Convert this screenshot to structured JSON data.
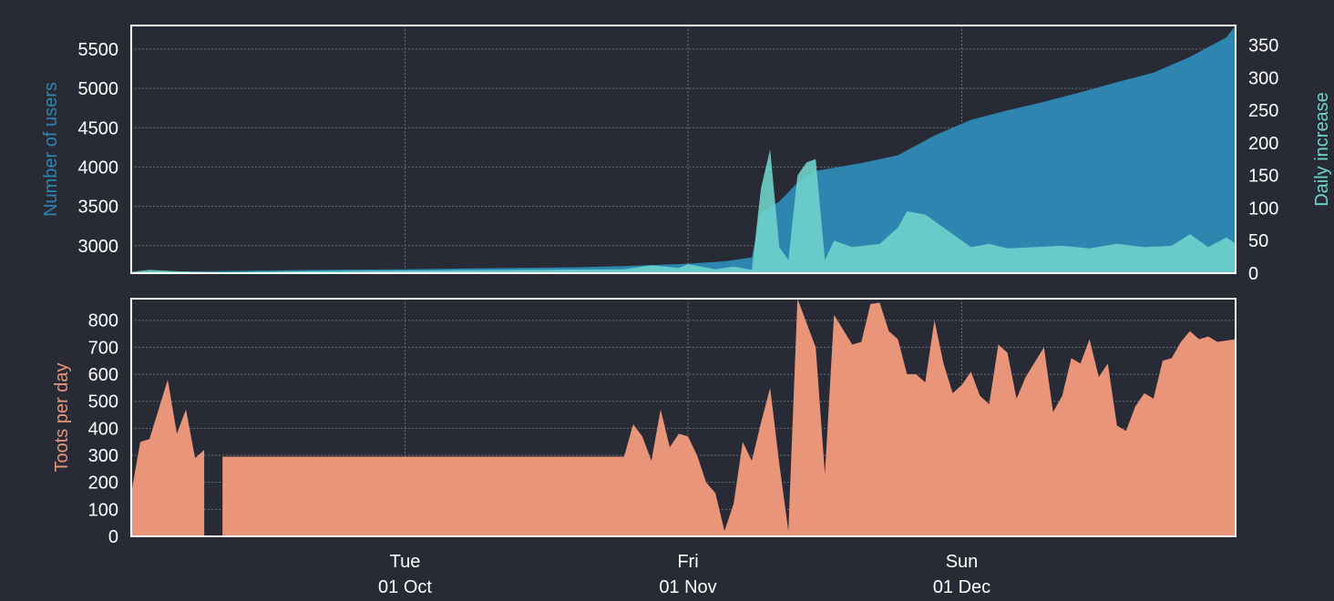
{
  "colors": {
    "background": "#282b35",
    "users": "#2e86b0",
    "daily": "#6fd6cc",
    "toots": "#e8957a",
    "frame": "#ffffff",
    "grid": "#6a6d78",
    "text": "#ffffff"
  },
  "chart_data": [
    {
      "type": "area",
      "ylabel_left": "Number of users",
      "ylabel_right": "Daily increase",
      "x_range": [
        "2019-09-01",
        "2019-12-31"
      ],
      "ylim_left": [
        2650,
        5800
      ],
      "ylim_right": [
        0,
        380
      ],
      "yticks_left": [
        "3000",
        "3500",
        "4000",
        "4500",
        "5000",
        "5500"
      ],
      "yticks_right": [
        "0",
        "50",
        "100",
        "150",
        "200",
        "250",
        "300",
        "350"
      ],
      "grid": true,
      "series": [
        {
          "name": "Number of users",
          "axis": "left",
          "points": [
            [
              "2019-09-01",
              2665
            ],
            [
              "2019-09-10",
              2675
            ],
            [
              "2019-09-20",
              2690
            ],
            [
              "2019-10-01",
              2700
            ],
            [
              "2019-10-10",
              2712
            ],
            [
              "2019-10-20",
              2725
            ],
            [
              "2019-10-25",
              2740
            ],
            [
              "2019-11-01",
              2770
            ],
            [
              "2019-11-05",
              2800
            ],
            [
              "2019-11-08",
              2850
            ],
            [
              "2019-11-09",
              3420
            ],
            [
              "2019-11-11",
              3560
            ],
            [
              "2019-11-13",
              3800
            ],
            [
              "2019-11-15",
              3950
            ],
            [
              "2019-11-20",
              4050
            ],
            [
              "2019-11-24",
              4150
            ],
            [
              "2019-11-28",
              4400
            ],
            [
              "2019-12-02",
              4600
            ],
            [
              "2019-12-06",
              4720
            ],
            [
              "2019-12-10",
              4830
            ],
            [
              "2019-12-14",
              4950
            ],
            [
              "2019-12-18",
              5080
            ],
            [
              "2019-12-22",
              5200
            ],
            [
              "2019-12-26",
              5400
            ],
            [
              "2019-12-30",
              5650
            ],
            [
              "2019-12-31",
              5800
            ]
          ]
        },
        {
          "name": "Daily increase",
          "axis": "right",
          "points": [
            [
              "2019-09-01",
              2
            ],
            [
              "2019-09-03",
              5
            ],
            [
              "2019-09-06",
              3
            ],
            [
              "2019-09-10",
              1
            ],
            [
              "2019-09-15",
              2
            ],
            [
              "2019-09-20",
              3
            ],
            [
              "2019-10-01",
              4
            ],
            [
              "2019-10-15",
              5
            ],
            [
              "2019-10-25",
              6
            ],
            [
              "2019-10-28",
              12
            ],
            [
              "2019-10-31",
              8
            ],
            [
              "2019-11-01",
              14
            ],
            [
              "2019-11-04",
              6
            ],
            [
              "2019-11-06",
              10
            ],
            [
              "2019-11-08",
              5
            ],
            [
              "2019-11-09",
              130
            ],
            [
              "2019-11-10",
              190
            ],
            [
              "2019-11-11",
              40
            ],
            [
              "2019-11-12",
              20
            ],
            [
              "2019-11-13",
              150
            ],
            [
              "2019-11-14",
              170
            ],
            [
              "2019-11-15",
              175
            ],
            [
              "2019-11-16",
              20
            ],
            [
              "2019-11-17",
              50
            ],
            [
              "2019-11-19",
              40
            ],
            [
              "2019-11-22",
              45
            ],
            [
              "2019-11-24",
              70
            ],
            [
              "2019-11-25",
              95
            ],
            [
              "2019-11-27",
              90
            ],
            [
              "2019-11-30",
              60
            ],
            [
              "2019-12-02",
              40
            ],
            [
              "2019-12-04",
              45
            ],
            [
              "2019-12-06",
              38
            ],
            [
              "2019-12-09",
              40
            ],
            [
              "2019-12-12",
              42
            ],
            [
              "2019-12-15",
              38
            ],
            [
              "2019-12-18",
              45
            ],
            [
              "2019-12-21",
              40
            ],
            [
              "2019-12-24",
              42
            ],
            [
              "2019-12-26",
              60
            ],
            [
              "2019-12-28",
              40
            ],
            [
              "2019-12-30",
              55
            ],
            [
              "2019-12-31",
              45
            ]
          ]
        }
      ]
    },
    {
      "type": "area",
      "ylabel": "Toots per day",
      "x_range": [
        "2019-09-01",
        "2019-12-31"
      ],
      "ylim": [
        0,
        880
      ],
      "yticks": [
        "0",
        "100",
        "200",
        "300",
        "400",
        "500",
        "600",
        "700",
        "800"
      ],
      "xticks": [
        {
          "date": "2019-10-01",
          "line1": "Tue",
          "line2": "01 Oct"
        },
        {
          "date": "2019-11-01",
          "line1": "Fri",
          "line2": "01 Nov"
        },
        {
          "date": "2019-12-01",
          "line1": "Sun",
          "line2": "01 Dec"
        }
      ],
      "grid": true,
      "series": [
        {
          "name": "Toots per day",
          "segments": [
            [
              [
                "2019-09-01",
                160
              ],
              [
                "2019-09-02",
                350
              ],
              [
                "2019-09-03",
                360
              ],
              [
                "2019-09-05",
                580
              ],
              [
                "2019-09-06",
                380
              ],
              [
                "2019-09-07",
                470
              ],
              [
                "2019-09-08",
                290
              ],
              [
                "2019-09-09",
                320
              ]
            ],
            [
              [
                "2019-09-11",
                295
              ],
              [
                "2019-10-25",
                295
              ],
              [
                "2019-10-26",
                415
              ],
              [
                "2019-10-27",
                370
              ],
              [
                "2019-10-28",
                280
              ],
              [
                "2019-10-29",
                470
              ],
              [
                "2019-10-30",
                330
              ],
              [
                "2019-10-31",
                380
              ],
              [
                "2019-11-01",
                370
              ],
              [
                "2019-11-02",
                300
              ],
              [
                "2019-11-03",
                200
              ],
              [
                "2019-11-04",
                160
              ],
              [
                "2019-11-05",
                20
              ],
              [
                "2019-11-06",
                120
              ],
              [
                "2019-11-07",
                350
              ],
              [
                "2019-11-08",
                280
              ],
              [
                "2019-11-09",
                420
              ],
              [
                "2019-11-10",
                550
              ],
              [
                "2019-11-11",
                270
              ],
              [
                "2019-11-12",
                20
              ],
              [
                "2019-11-13",
                880
              ],
              [
                "2019-11-15",
                700
              ],
              [
                "2019-11-16",
                230
              ],
              [
                "2019-11-17",
                820
              ],
              [
                "2019-11-19",
                710
              ],
              [
                "2019-11-20",
                720
              ],
              [
                "2019-11-21",
                860
              ],
              [
                "2019-11-22",
                865
              ],
              [
                "2019-11-23",
                760
              ],
              [
                "2019-11-24",
                730
              ],
              [
                "2019-11-25",
                600
              ],
              [
                "2019-11-26",
                600
              ],
              [
                "2019-11-27",
                570
              ],
              [
                "2019-11-28",
                800
              ],
              [
                "2019-11-29",
                640
              ],
              [
                "2019-11-30",
                530
              ],
              [
                "2019-12-01",
                560
              ],
              [
                "2019-12-02",
                610
              ],
              [
                "2019-12-03",
                520
              ],
              [
                "2019-12-04",
                490
              ],
              [
                "2019-12-05",
                710
              ],
              [
                "2019-12-06",
                680
              ],
              [
                "2019-12-07",
                510
              ],
              [
                "2019-12-08",
                590
              ],
              [
                "2019-12-10",
                700
              ],
              [
                "2019-12-11",
                460
              ],
              [
                "2019-12-12",
                520
              ],
              [
                "2019-12-13",
                660
              ],
              [
                "2019-12-14",
                640
              ],
              [
                "2019-12-15",
                730
              ],
              [
                "2019-12-16",
                590
              ],
              [
                "2019-12-17",
                640
              ],
              [
                "2019-12-18",
                410
              ],
              [
                "2019-12-19",
                390
              ],
              [
                "2019-12-20",
                480
              ],
              [
                "2019-12-21",
                530
              ],
              [
                "2019-12-22",
                510
              ],
              [
                "2019-12-23",
                650
              ],
              [
                "2019-12-24",
                660
              ],
              [
                "2019-12-25",
                720
              ],
              [
                "2019-12-26",
                760
              ],
              [
                "2019-12-27",
                730
              ],
              [
                "2019-12-28",
                740
              ],
              [
                "2019-12-29",
                720
              ],
              [
                "2019-12-30",
                725
              ],
              [
                "2019-12-31",
                730
              ]
            ]
          ]
        }
      ]
    }
  ]
}
